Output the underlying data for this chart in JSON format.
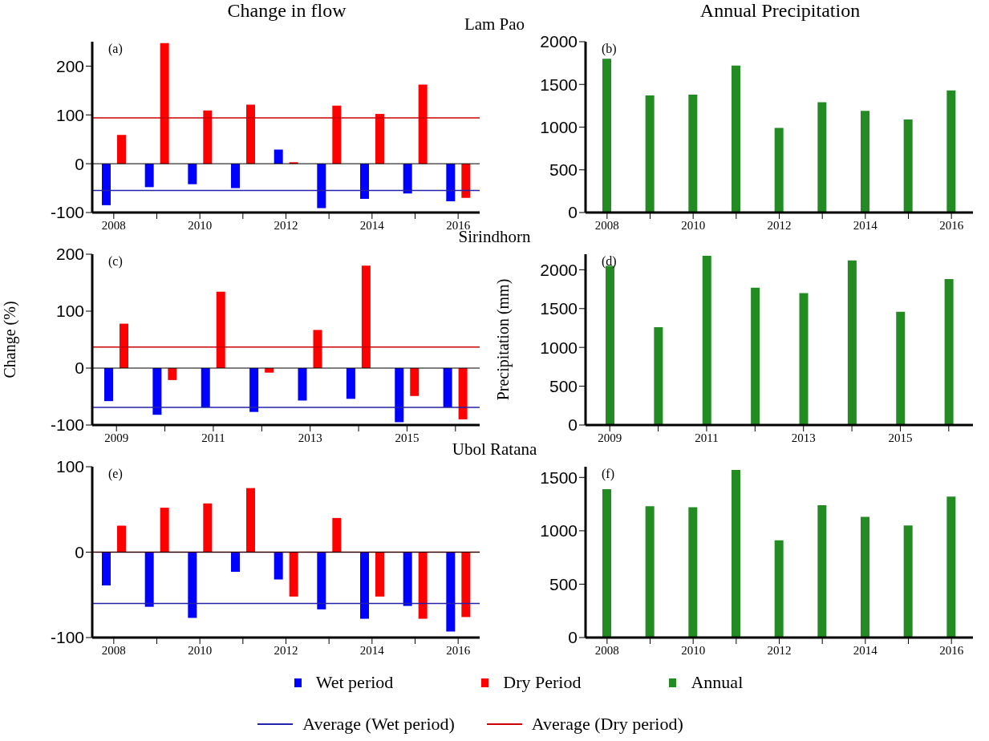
{
  "chart_data": [
    {
      "type": "bar",
      "title": "Change in flow",
      "subtitle": "Lam Pao",
      "annotations": [
        "(a)"
      ],
      "categories": [
        "2008",
        null,
        "2010",
        null,
        "2012",
        null,
        "2014",
        null,
        "2016"
      ],
      "series": [
        {
          "color": "#0000ff",
          "values": [
            -85,
            -48,
            -42,
            -50,
            29,
            -91,
            -72,
            -61,
            -77
          ]
        },
        {
          "color": "#ff0000",
          "values": [
            59,
            247,
            109,
            121,
            3,
            119,
            102,
            162,
            -70
          ]
        }
      ],
      "ref_lines": [
        {
          "axis": "y",
          "value": -55,
          "color": "#2222aa"
        },
        {
          "axis": "y",
          "value": 94,
          "color": "#cc0000"
        }
      ],
      "ylim": [
        -100,
        250
      ],
      "yticks": [
        -100,
        0,
        100,
        200
      ]
    },
    {
      "type": "bar",
      "title": "Annual Precipitation",
      "annotations": [
        "(b)"
      ],
      "categories": [
        "2008",
        null,
        "2010",
        null,
        "2012",
        null,
        "2014",
        null,
        "2016"
      ],
      "series": [
        {
          "color": "#228b22",
          "values": [
            1800,
            1370,
            1380,
            1720,
            990,
            1290,
            1190,
            1090,
            1430
          ]
        }
      ],
      "ylim": [
        0,
        2000
      ],
      "yticks": [
        0,
        500,
        1000,
        1500,
        2000
      ]
    },
    {
      "type": "bar",
      "subtitle": "Sirindhorn",
      "ylabel": "Change (%)",
      "annotations": [
        "(c)"
      ],
      "categories": [
        "2009",
        null,
        "2011",
        null,
        "2013",
        null,
        "2015",
        null
      ],
      "series": [
        {
          "color": "#0000ff",
          "values": [
            -58,
            -82,
            -69,
            -77,
            -57,
            -54,
            -95,
            -69
          ]
        },
        {
          "color": "#ff0000",
          "values": [
            78,
            -21,
            134,
            -8,
            67,
            180,
            -49,
            -90
          ]
        }
      ],
      "ref_lines": [
        {
          "axis": "y",
          "value": -69,
          "color": "#2222aa"
        },
        {
          "axis": "y",
          "value": 37,
          "color": "#cc0000"
        }
      ],
      "ylim": [
        -100,
        200
      ],
      "yticks": [
        -100,
        0,
        100,
        200
      ]
    },
    {
      "type": "bar",
      "ylabel": "Precipitation (mm)",
      "annotations": [
        "(d)"
      ],
      "categories": [
        "2009",
        null,
        "2011",
        null,
        "2013",
        null,
        "2015",
        null
      ],
      "series": [
        {
          "color": "#228b22",
          "values": [
            2050,
            1260,
            2180,
            1770,
            1700,
            2120,
            1460,
            1880
          ]
        }
      ],
      "ylim": [
        0,
        2200
      ],
      "yticks": [
        0,
        500,
        1000,
        1500,
        2000
      ]
    },
    {
      "type": "bar",
      "subtitle": "Ubol Ratana",
      "annotations": [
        "(e)"
      ],
      "legend": "bottom",
      "categories": [
        "2008",
        null,
        "2010",
        null,
        "2012",
        null,
        "2014",
        null,
        "2016"
      ],
      "series": [
        {
          "name": "Wet period",
          "color": "#0000ff",
          "values": [
            -39,
            -64,
            -77,
            -23,
            -32,
            -67,
            -78,
            -63,
            -93
          ]
        },
        {
          "name": "Dry Period",
          "color": "#ff0000",
          "values": [
            31,
            52,
            57,
            75,
            -52,
            40,
            -52,
            -78,
            -76
          ]
        }
      ],
      "ref_lines": [
        {
          "axis": "y",
          "value": -60,
          "label": "Average (Wet period)",
          "color": "#2222aa"
        },
        {
          "axis": "y",
          "value": 0,
          "label": "Average (Dry period)",
          "color": "#cc0000"
        }
      ],
      "ylim": [
        -100,
        100
      ],
      "yticks": [
        -100,
        0,
        100
      ]
    },
    {
      "type": "bar",
      "annotations": [
        "(f)"
      ],
      "legend": "bottom",
      "categories": [
        "2008",
        null,
        "2010",
        null,
        "2012",
        null,
        "2014",
        null,
        "2016"
      ],
      "series": [
        {
          "name": "Annual",
          "color": "#228b22",
          "values": [
            1390,
            1230,
            1220,
            1570,
            910,
            1240,
            1130,
            1050,
            1320
          ]
        }
      ],
      "ylim": [
        0,
        1600
      ],
      "yticks": [
        0,
        500,
        1000,
        1500
      ]
    }
  ]
}
